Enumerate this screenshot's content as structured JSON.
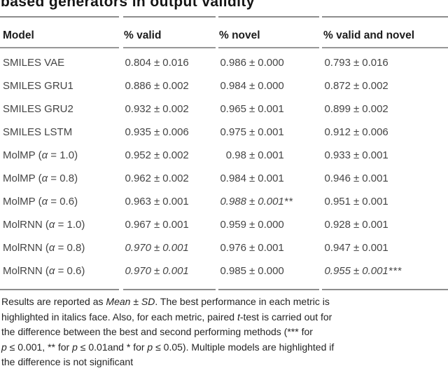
{
  "title": "based generators in output validity",
  "table": {
    "pm_symbol": "±",
    "headers": [
      "Model",
      "% valid",
      "% novel",
      "% valid and novel"
    ],
    "rows": [
      {
        "model": [
          {
            "t": "SMILES VAE",
            "i": false
          }
        ],
        "cells": [
          {
            "val": "0.804",
            "err": "0.016",
            "suffix": "",
            "italic": false
          },
          {
            "val": "0.986",
            "err": "0.000",
            "suffix": "",
            "italic": false
          },
          {
            "val": "0.793",
            "err": "0.016",
            "suffix": "",
            "italic": false
          }
        ]
      },
      {
        "model": [
          {
            "t": "SMILES GRU1",
            "i": false
          }
        ],
        "cells": [
          {
            "val": "0.886",
            "err": "0.002",
            "suffix": "",
            "italic": false
          },
          {
            "val": "0.984",
            "err": "0.000",
            "suffix": "",
            "italic": false
          },
          {
            "val": "0.872",
            "err": "0.002",
            "suffix": "",
            "italic": false
          }
        ]
      },
      {
        "model": [
          {
            "t": "SMILES GRU2",
            "i": false
          }
        ],
        "cells": [
          {
            "val": "0.932",
            "err": "0.002",
            "suffix": "",
            "italic": false
          },
          {
            "val": "0.965",
            "err": "0.001",
            "suffix": "",
            "italic": false
          },
          {
            "val": "0.899",
            "err": "0.002",
            "suffix": "",
            "italic": false
          }
        ]
      },
      {
        "model": [
          {
            "t": "SMILES LSTM",
            "i": false
          }
        ],
        "cells": [
          {
            "val": "0.935",
            "err": "0.006",
            "suffix": "",
            "italic": false
          },
          {
            "val": "0.975",
            "err": "0.001",
            "suffix": "",
            "italic": false
          },
          {
            "val": "0.912",
            "err": "0.006",
            "suffix": "",
            "italic": false
          }
        ]
      },
      {
        "model": [
          {
            "t": "MolMP (",
            "i": false
          },
          {
            "t": "α",
            "i": true
          },
          {
            "t": " = 1.0)",
            "i": false
          }
        ],
        "cells": [
          {
            "val": "0.952",
            "err": "0.002",
            "suffix": "",
            "italic": false
          },
          {
            "val": "0.98",
            "err": "0.001",
            "suffix": "",
            "italic": false
          },
          {
            "val": "0.933",
            "err": "0.001",
            "suffix": "",
            "italic": false
          }
        ]
      },
      {
        "model": [
          {
            "t": "MolMP (",
            "i": false
          },
          {
            "t": "α",
            "i": true
          },
          {
            "t": " = 0.8)",
            "i": false
          }
        ],
        "cells": [
          {
            "val": "0.962",
            "err": "0.002",
            "suffix": "",
            "italic": false
          },
          {
            "val": "0.984",
            "err": "0.001",
            "suffix": "",
            "italic": false
          },
          {
            "val": "0.946",
            "err": "0.001",
            "suffix": "",
            "italic": false
          }
        ]
      },
      {
        "model": [
          {
            "t": "MolMP (",
            "i": false
          },
          {
            "t": "α",
            "i": true
          },
          {
            "t": " = 0.6)",
            "i": false
          }
        ],
        "cells": [
          {
            "val": "0.963",
            "err": "0.001",
            "suffix": "",
            "italic": false
          },
          {
            "val": "0.988",
            "err": "0.001",
            "suffix": "**",
            "italic": true
          },
          {
            "val": "0.951",
            "err": "0.001",
            "suffix": "",
            "italic": false
          }
        ]
      },
      {
        "model": [
          {
            "t": "MolRNN (",
            "i": false
          },
          {
            "t": "α",
            "i": true
          },
          {
            "t": " = 1.0)",
            "i": false
          }
        ],
        "cells": [
          {
            "val": "0.967",
            "err": "0.001",
            "suffix": "",
            "italic": false
          },
          {
            "val": "0.959",
            "err": "0.000",
            "suffix": "",
            "italic": false
          },
          {
            "val": "0.928",
            "err": "0.001",
            "suffix": "",
            "italic": false
          }
        ]
      },
      {
        "model": [
          {
            "t": "MolRNN (",
            "i": false
          },
          {
            "t": "α",
            "i": true
          },
          {
            "t": " = 0.8)",
            "i": false
          }
        ],
        "cells": [
          {
            "val": "0.970",
            "err": "0.001",
            "suffix": "",
            "italic": true
          },
          {
            "val": "0.976",
            "err": "0.001",
            "suffix": "",
            "italic": false
          },
          {
            "val": "0.947",
            "err": "0.001",
            "suffix": "",
            "italic": false
          }
        ]
      },
      {
        "model": [
          {
            "t": "MolRNN (",
            "i": false
          },
          {
            "t": "α",
            "i": true
          },
          {
            "t": " = 0.6)",
            "i": false
          }
        ],
        "cells": [
          {
            "val": "0.970",
            "err": "0.001",
            "suffix": "",
            "italic": true
          },
          {
            "val": "0.985",
            "err": "0.000",
            "suffix": "",
            "italic": false
          },
          {
            "val": "0.955",
            "err": "0.001",
            "suffix": "***",
            "italic": true
          }
        ]
      }
    ]
  },
  "footnote": {
    "lines": [
      [
        {
          "t": "Results are reported as ",
          "i": false
        },
        {
          "t": "Mean",
          "i": true
        },
        {
          "t": " ± ",
          "i": false
        },
        {
          "t": "SD",
          "i": true
        },
        {
          "t": ". The best performance in each metric is",
          "i": false
        }
      ],
      [
        {
          "t": "highlighted in italics face. Also, for each metric, paired ",
          "i": false
        },
        {
          "t": "t",
          "i": true
        },
        {
          "t": "-test is carried out for",
          "i": false
        }
      ],
      [
        {
          "t": "the difference between the best and second performing methods (*** for",
          "i": false
        }
      ],
      [
        {
          "t": "p",
          "i": true
        },
        {
          "t": " ≤ 0.001, ** for ",
          "i": false
        },
        {
          "t": "p",
          "i": true
        },
        {
          "t": " ≤ 0.01and * for ",
          "i": false
        },
        {
          "t": "p",
          "i": true
        },
        {
          "t": " ≤ 0.05). Multiple models are highlighted if",
          "i": false
        }
      ],
      [
        {
          "t": "the difference is not significant",
          "i": false
        }
      ]
    ]
  }
}
